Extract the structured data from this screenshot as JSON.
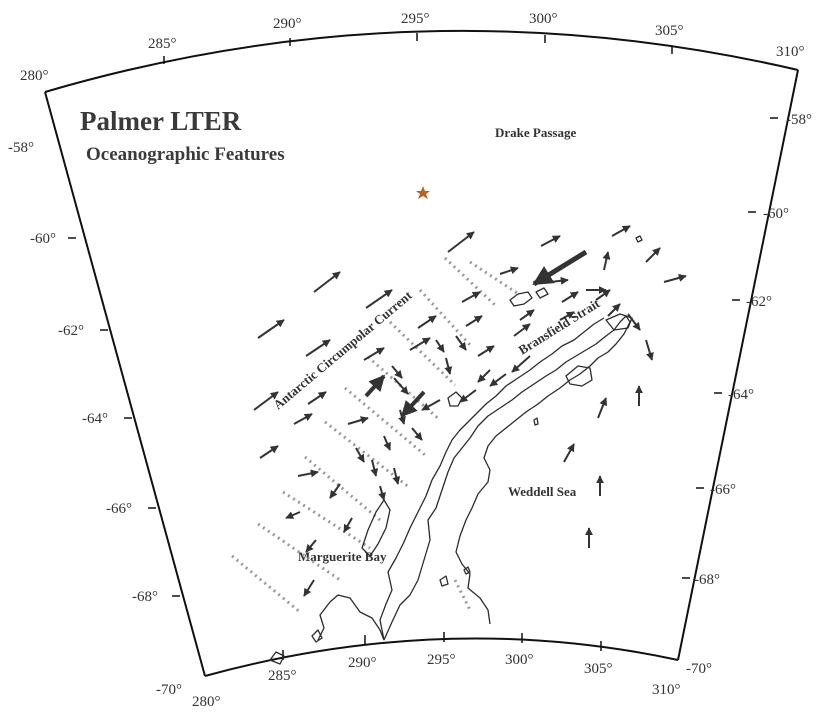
{
  "title": "Palmer LTER",
  "subtitle": "Oceanographic Features",
  "top_lon_labels": [
    "280°",
    "285°",
    "290°",
    "295°",
    "300°",
    "305°",
    "310°"
  ],
  "bottom_lon_labels": [
    "280°",
    "285°",
    "290°",
    "295°",
    "300°",
    "305°",
    "310°"
  ],
  "left_lat_labels": [
    "-58°",
    "-60°",
    "-62°",
    "-64°",
    "-66°",
    "-68°",
    "-70°"
  ],
  "right_lat_labels": [
    "-58°",
    "-60°",
    "-62°",
    "-64°",
    "-66°",
    "-68°",
    "-70°"
  ],
  "features": {
    "drake_passage": "Drake Passage",
    "acc": "Antarctic Circumpolar Current",
    "bransfield": "Bransfield Strait",
    "weddell": "Weddell Sea",
    "marguerite": "Marguerite Bay"
  },
  "colors": {
    "arrow": "#333333",
    "coastline": "#2c2c2c",
    "station_line": "#9a9a9a",
    "marker": "#b5651d"
  }
}
